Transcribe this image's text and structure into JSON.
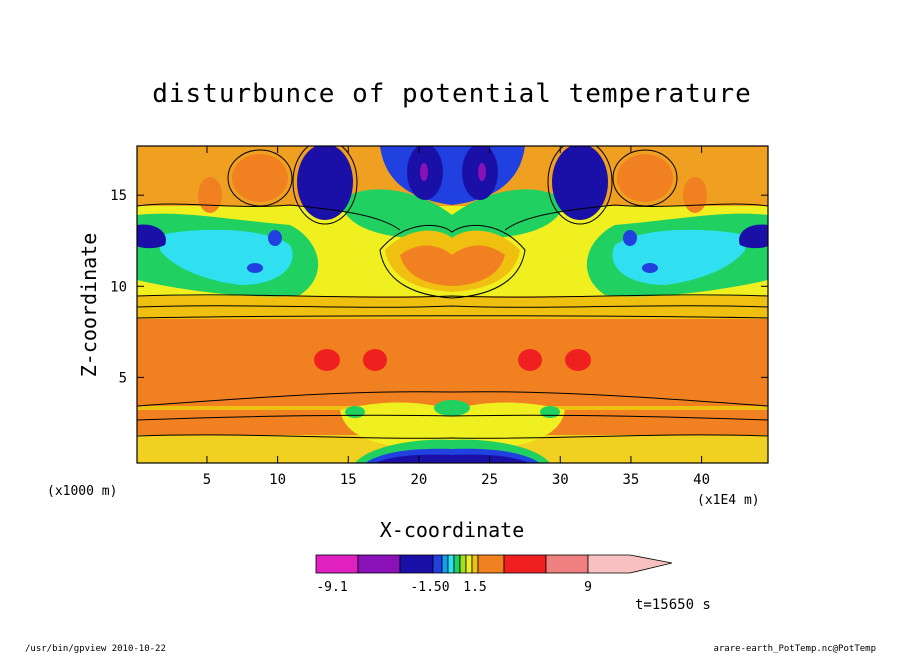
{
  "chart_data": {
    "type": "heatmap",
    "title": "disturbunce of potential temperature",
    "xlabel": "X-coordinate",
    "ylabel": "Z-coordinate",
    "xlim": [
      0.05,
      44.7
    ],
    "ylim": [
      0.3,
      17.7
    ],
    "x_ticks": [
      5,
      10,
      15,
      20,
      25,
      30,
      35,
      40
    ],
    "y_ticks": [
      5,
      10,
      15
    ],
    "x_unit": "(x1E4 m)",
    "y_unit": "(x1000 m)",
    "colorbar": {
      "labels": [
        "-9.1",
        "-1.50",
        "1.5",
        "9"
      ],
      "colors": [
        "#e020c0",
        "#8a10b8",
        "#1a10a8",
        "#2040e0",
        "#10a0f0",
        "#30e0f0",
        "#20d060",
        "#a0e020",
        "#f0f020",
        "#f0c010",
        "#f08020",
        "#f02020",
        "#f08080",
        "#f8c0c0"
      ]
    },
    "annotation_time": "t=15650 s",
    "footer_left": "/usr/bin/gpview  2010-10-22",
    "footer_right": "arare-earth_PotTemp.nc@PotTemp",
    "palette": {
      "deep_blue": "#1a10a8",
      "blue": "#2040e0",
      "cyan": "#30e0f0",
      "green": "#20d060",
      "yellow": "#f0f020",
      "gold": "#f0c010",
      "orange": "#f08020",
      "red": "#f02020",
      "magenta": "#e020c0"
    }
  }
}
